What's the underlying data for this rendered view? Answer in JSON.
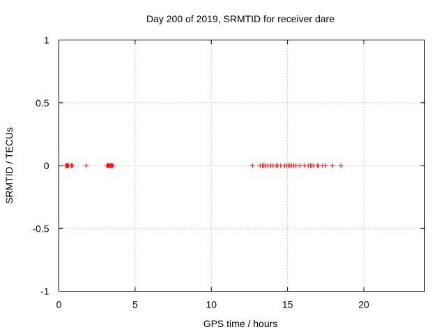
{
  "chart_data": {
    "type": "scatter",
    "title": "Day 200 of 2019, SRMTID for receiver dare",
    "xlabel": "GPS time / hours",
    "ylabel": "SRMTID / TECUs",
    "xlim": [
      0,
      24
    ],
    "ylim": [
      -1,
      1
    ],
    "xticks": [
      0,
      5,
      10,
      15,
      20
    ],
    "xtick_labels": [
      "0",
      "5",
      "10",
      "15",
      "20"
    ],
    "yticks": [
      -1,
      -0.5,
      0,
      0.5,
      1
    ],
    "ytick_labels": [
      "-1",
      "-0.5",
      "0",
      "0.5",
      "1"
    ],
    "grid": true,
    "marker": "+",
    "series": [
      {
        "color": "#ff0000",
        "x": [
          0.45,
          0.5,
          0.55,
          0.6,
          0.65,
          0.8,
          0.85,
          0.9,
          1.8,
          3.15,
          3.2,
          3.25,
          3.3,
          3.35,
          3.4,
          3.45,
          3.5,
          3.55,
          12.7,
          13.2,
          13.35,
          13.45,
          13.55,
          13.7,
          13.9,
          14.05,
          14.25,
          14.35,
          14.55,
          14.8,
          14.95,
          15.05,
          15.15,
          15.25,
          15.4,
          15.55,
          15.8,
          16.1,
          16.35,
          16.5,
          16.6,
          16.7,
          16.95,
          17.05,
          17.3,
          17.5,
          17.95,
          18.5
        ],
        "y": [
          0,
          0,
          0,
          0,
          0,
          0,
          0,
          0,
          0,
          0,
          0,
          0,
          0,
          0,
          0,
          0,
          0,
          0,
          0,
          0,
          0,
          0,
          0,
          0,
          0,
          0,
          0,
          0,
          0,
          0,
          0,
          0,
          0,
          0,
          0,
          0,
          0,
          0,
          0,
          0,
          0,
          0,
          0,
          0,
          0,
          0,
          0,
          0
        ]
      }
    ]
  }
}
